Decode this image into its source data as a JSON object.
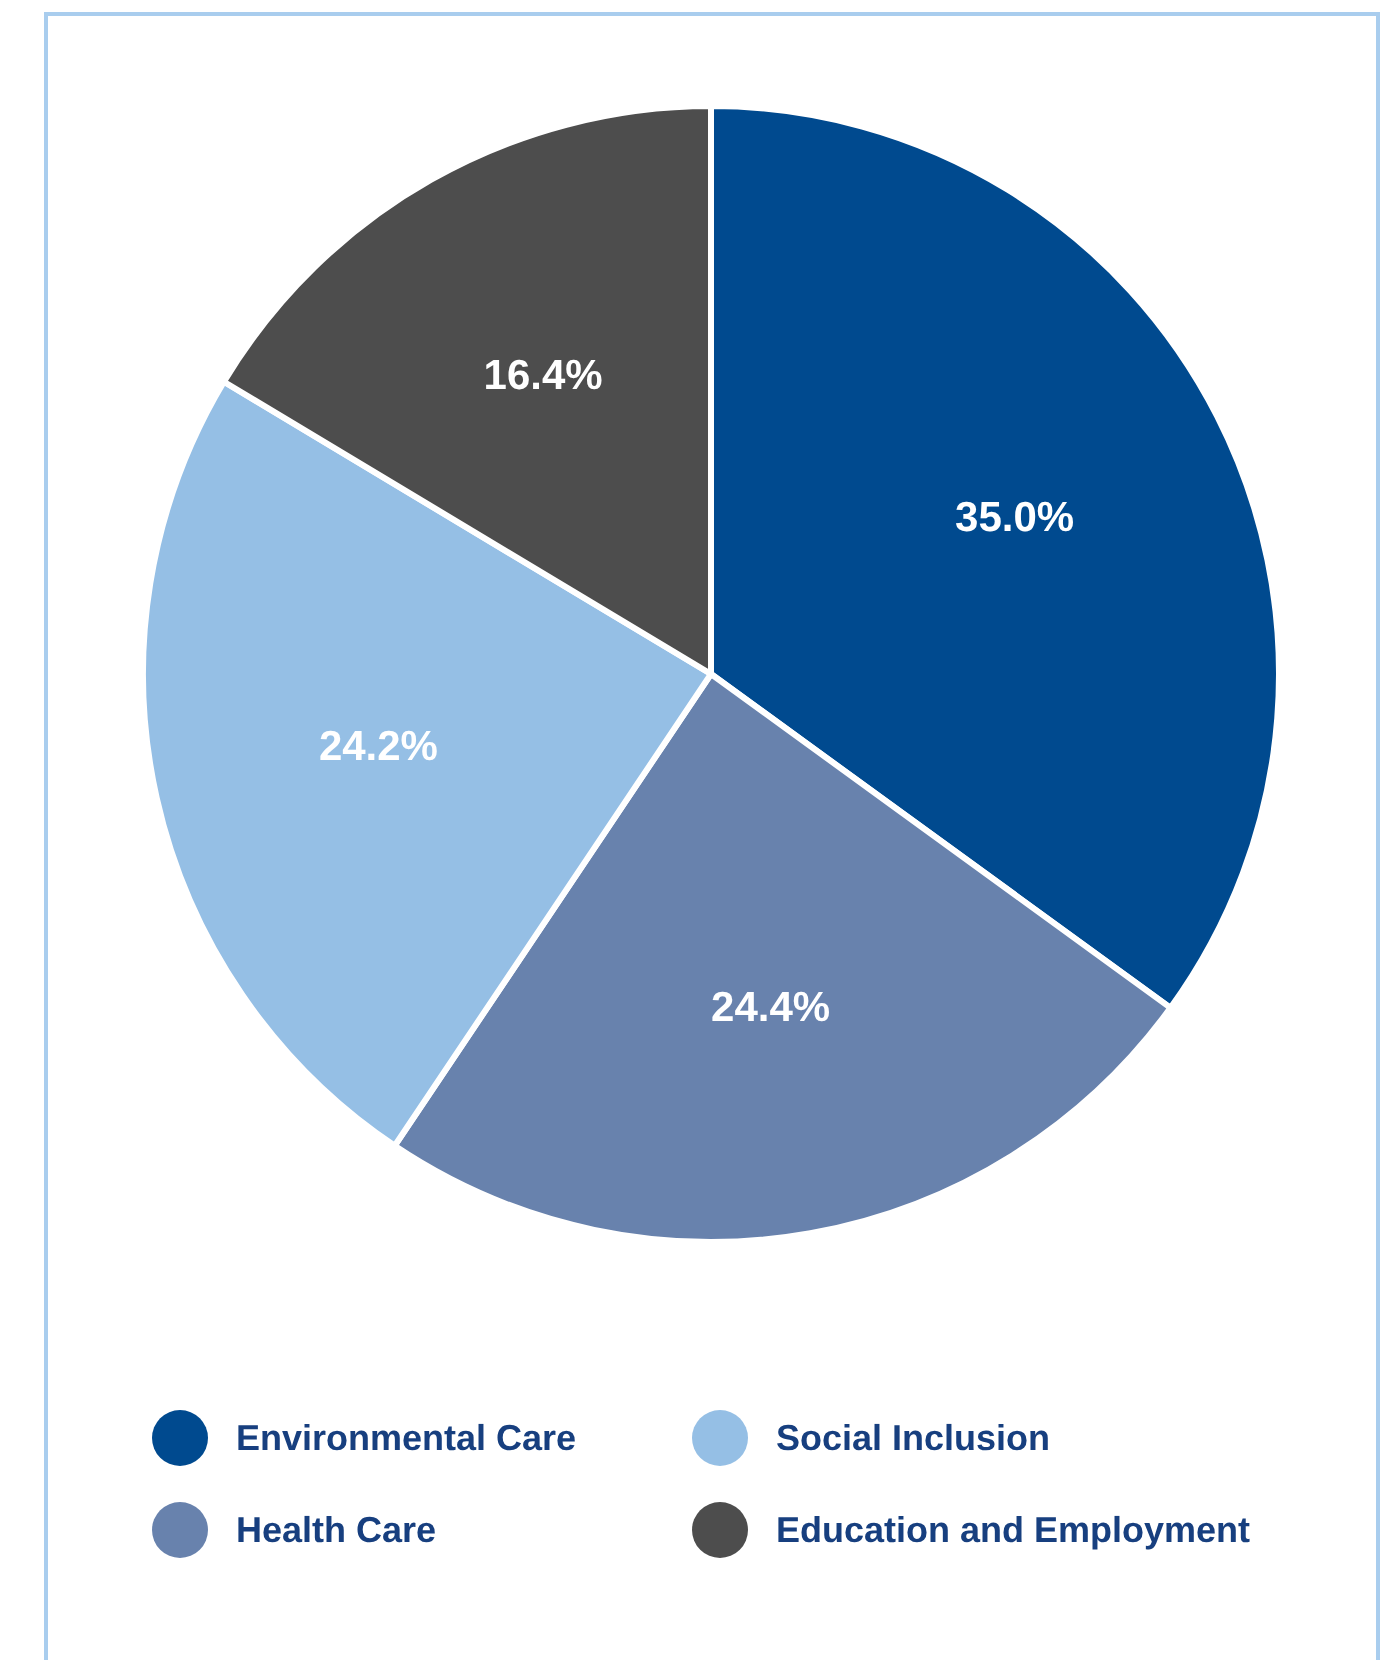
{
  "chart_data": {
    "type": "pie",
    "categories": [
      "Environmental Care",
      "Health Care",
      "Social Inclusion",
      "Education and Employment"
    ],
    "values": [
      35.0,
      24.4,
      24.2,
      16.4
    ],
    "colors": [
      "#004a8f",
      "#6882ad",
      "#95bfe5",
      "#4d4d4d"
    ],
    "value_labels": [
      "35.0%",
      "24.4%",
      "24.2%",
      "16.4%"
    ],
    "legend": "bottom"
  }
}
